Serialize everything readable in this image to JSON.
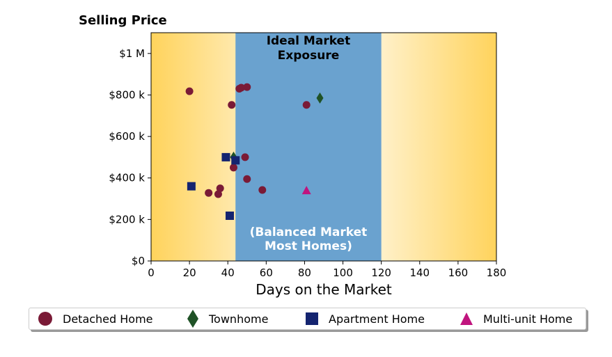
{
  "chart_data": {
    "type": "scatter",
    "title": "Selling Price",
    "xlabel": "Days on the Market",
    "ylabel": "",
    "xlim": [
      0,
      180
    ],
    "ylim": [
      0,
      1100000
    ],
    "x_ticks": [
      0,
      20,
      40,
      60,
      80,
      100,
      120,
      140,
      160,
      180
    ],
    "y_ticks": [
      {
        "value": 0,
        "label": "$0"
      },
      {
        "value": 200000,
        "label": "$200 k"
      },
      {
        "value": 400000,
        "label": "$400 k"
      },
      {
        "value": 600000,
        "label": "$600 k"
      },
      {
        "value": 800000,
        "label": "$800 k"
      },
      {
        "value": 1000000,
        "label": "$1 M"
      }
    ],
    "grid": false,
    "legend_position": "bottom",
    "band": {
      "x_range": [
        44,
        120
      ],
      "color": "#6aa2cf",
      "top_label_lines": [
        "Ideal Market",
        "Exposure"
      ],
      "bottom_label_lines": [
        "(Balanced Market",
        "Most Homes)"
      ]
    },
    "background_gradient": {
      "edge_color": "#ffd35c",
      "center_color": "#ffffff"
    },
    "series": [
      {
        "name": "Detached Home",
        "marker": "circle",
        "color": "#7a1a36",
        "points": [
          [
            20,
            818000
          ],
          [
            30,
            328000
          ],
          [
            35,
            322000
          ],
          [
            36,
            350000
          ],
          [
            42,
            752000
          ],
          [
            43,
            450000
          ],
          [
            46,
            830000
          ],
          [
            47,
            835000
          ],
          [
            49,
            500000
          ],
          [
            50,
            838000
          ],
          [
            50,
            395000
          ],
          [
            58,
            342000
          ],
          [
            81,
            752000
          ]
        ]
      },
      {
        "name": "Townhome",
        "marker": "diamond",
        "color": "#1f5226",
        "points": [
          [
            43,
            500000
          ],
          [
            88,
            785000
          ]
        ]
      },
      {
        "name": "Apartment Home",
        "marker": "square",
        "color": "#142470",
        "points": [
          [
            21,
            360000
          ],
          [
            39,
            500000
          ],
          [
            41,
            218000
          ],
          [
            44,
            485000
          ]
        ]
      },
      {
        "name": "Multi-unit Home",
        "marker": "triangle",
        "color": "#c0147e",
        "points": [
          [
            81,
            340000
          ]
        ]
      }
    ]
  }
}
